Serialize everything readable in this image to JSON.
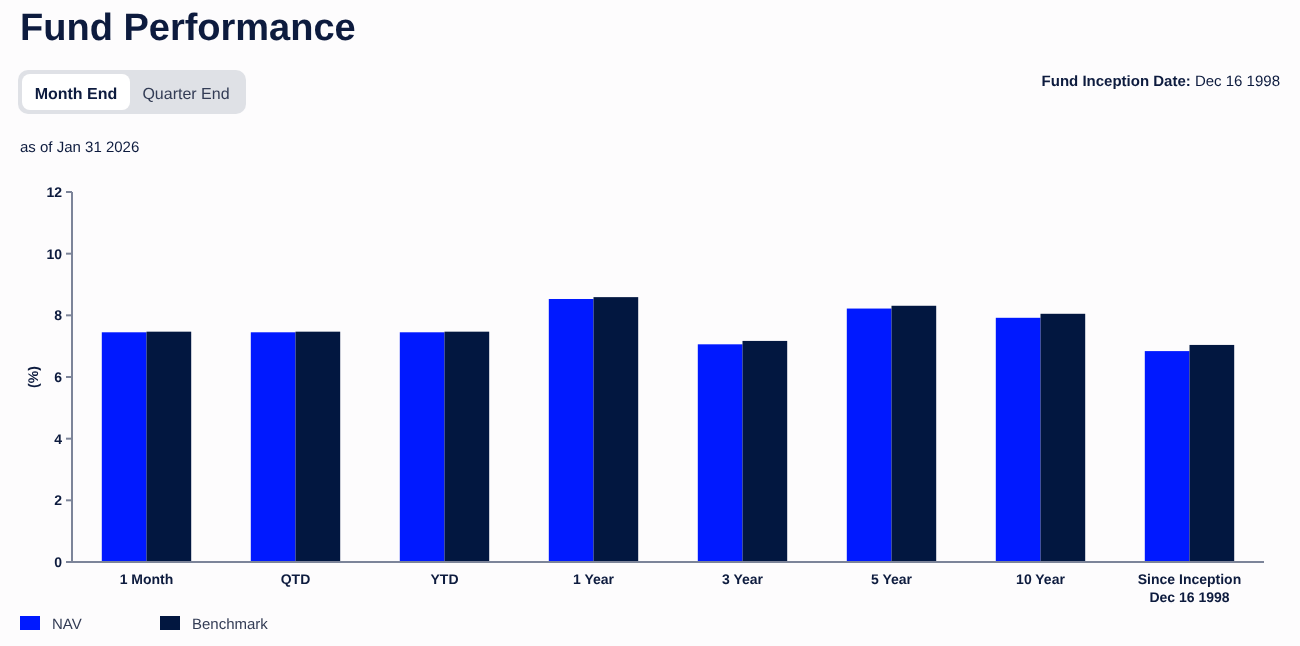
{
  "chart_data": {
    "type": "bar",
    "title": "Fund Performance",
    "ylabel": "(%)",
    "annotations": [
      "Month End",
      "Quarter End",
      "Fund Inception Date: Dec 16 1998",
      "as of Jan 31 2026"
    ],
    "categories": [
      "1 Month",
      "QTD",
      "YTD",
      "1 Year",
      "3 Year",
      "5 Year",
      "10 Year",
      "Since Inception Dec 16 1998"
    ],
    "series": [
      {
        "name": "NAV",
        "color": "#0019ff",
        "values": [
          7.45,
          7.45,
          7.45,
          8.53,
          7.06,
          8.22,
          7.92,
          6.84
        ]
      },
      {
        "name": "Benchmark",
        "color": "#021740",
        "values": [
          7.47,
          7.47,
          7.47,
          8.59,
          7.17,
          8.31,
          8.05,
          7.04
        ]
      }
    ],
    "ylim": [
      0,
      12
    ],
    "yticks": [
      0,
      2,
      4,
      6,
      8,
      10,
      12
    ],
    "grid": false,
    "legend": "bottom left"
  }
}
